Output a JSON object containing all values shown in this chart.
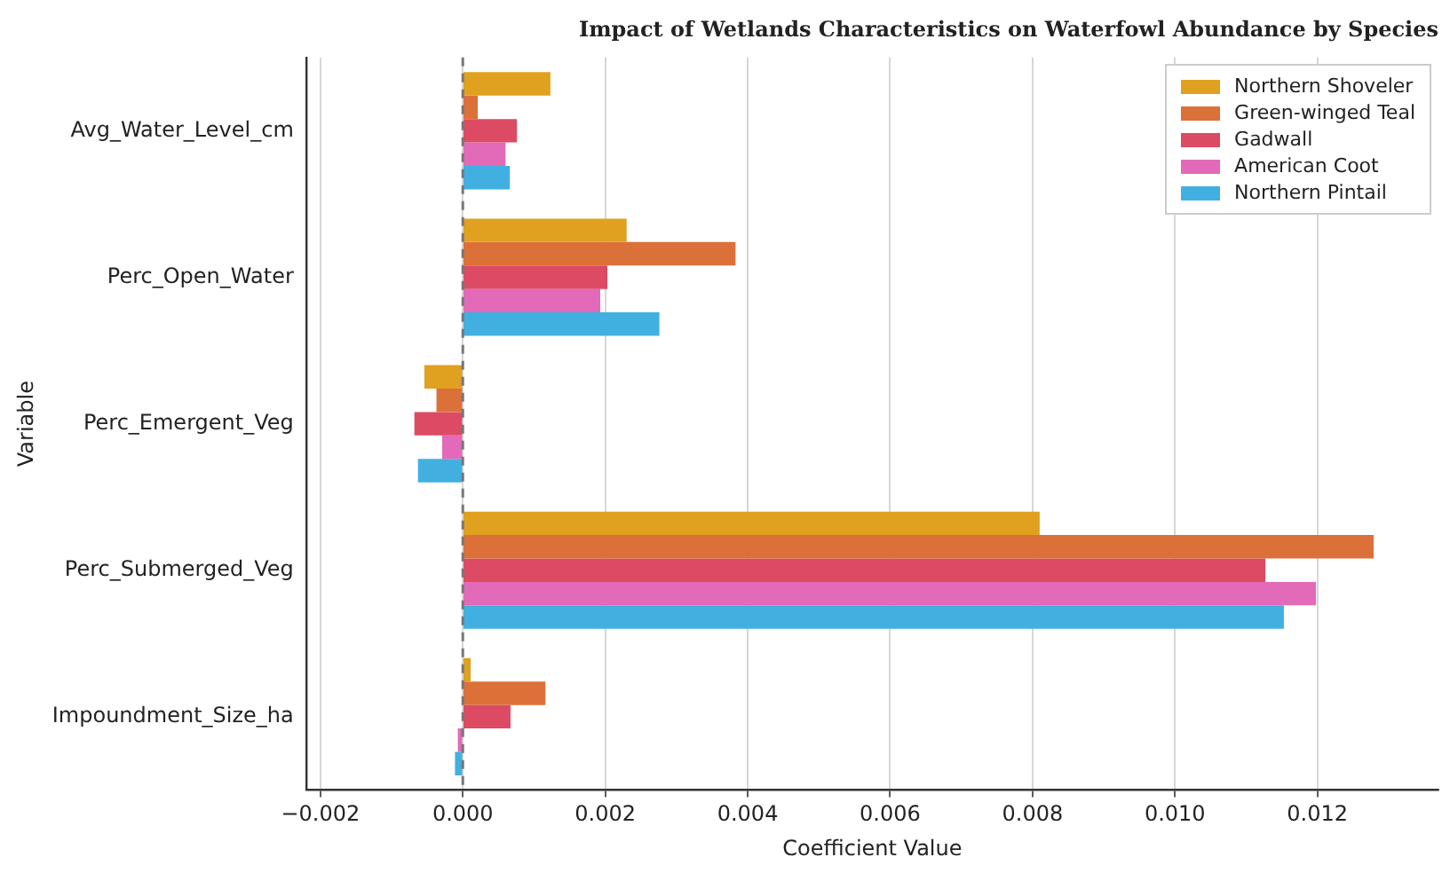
{
  "chart_data": {
    "type": "bar",
    "orientation": "horizontal",
    "title": "Impact of Wetlands Characteristics on Waterfowl Abundance by Species",
    "xlabel": "Coefficient Value",
    "ylabel": "Variable",
    "categories": [
      "Avg_Water_Level_cm",
      "Perc_Open_Water",
      "Perc_Emergent_Veg",
      "Perc_Submerged_Veg",
      "Impoundment_Size_ha"
    ],
    "series": [
      {
        "name": "Northern Shoveler",
        "color": "#e0a020",
        "values": [
          0.00123,
          0.0023,
          -0.00054,
          0.0081,
          0.00011
        ]
      },
      {
        "name": "Green-winged Teal",
        "color": "#dc7039",
        "values": [
          0.00021,
          0.00383,
          -0.00037,
          0.01279,
          0.00116
        ]
      },
      {
        "name": "Gadwall",
        "color": "#dc4a64",
        "values": [
          0.00076,
          0.00203,
          -0.00068,
          0.01127,
          0.00067
        ]
      },
      {
        "name": "American Coot",
        "color": "#e36ab8",
        "values": [
          0.0006,
          0.00193,
          -0.00029,
          0.01198,
          -7e-05
        ]
      },
      {
        "name": "Northern Pintail",
        "color": "#41b0e1",
        "values": [
          0.00066,
          0.00276,
          -0.00063,
          0.01153,
          -0.00011
        ]
      }
    ],
    "xlim": [
      -0.0022,
      0.0137
    ],
    "xticks": [
      {
        "value": -0.002,
        "label": "−0.002"
      },
      {
        "value": 0,
        "label": "0.000"
      },
      {
        "value": 0.002,
        "label": "0.002"
      },
      {
        "value": 0.004,
        "label": "0.004"
      },
      {
        "value": 0.006,
        "label": "0.006"
      },
      {
        "value": 0.008,
        "label": "0.008"
      },
      {
        "value": 0.01,
        "label": "0.010"
      },
      {
        "value": 0.012,
        "label": "0.012"
      }
    ],
    "ref_lines": [
      {
        "axis": "x",
        "value": 0,
        "color": "#777777",
        "line_style": "dashed"
      }
    ],
    "grid": "x",
    "legend": "top right"
  }
}
